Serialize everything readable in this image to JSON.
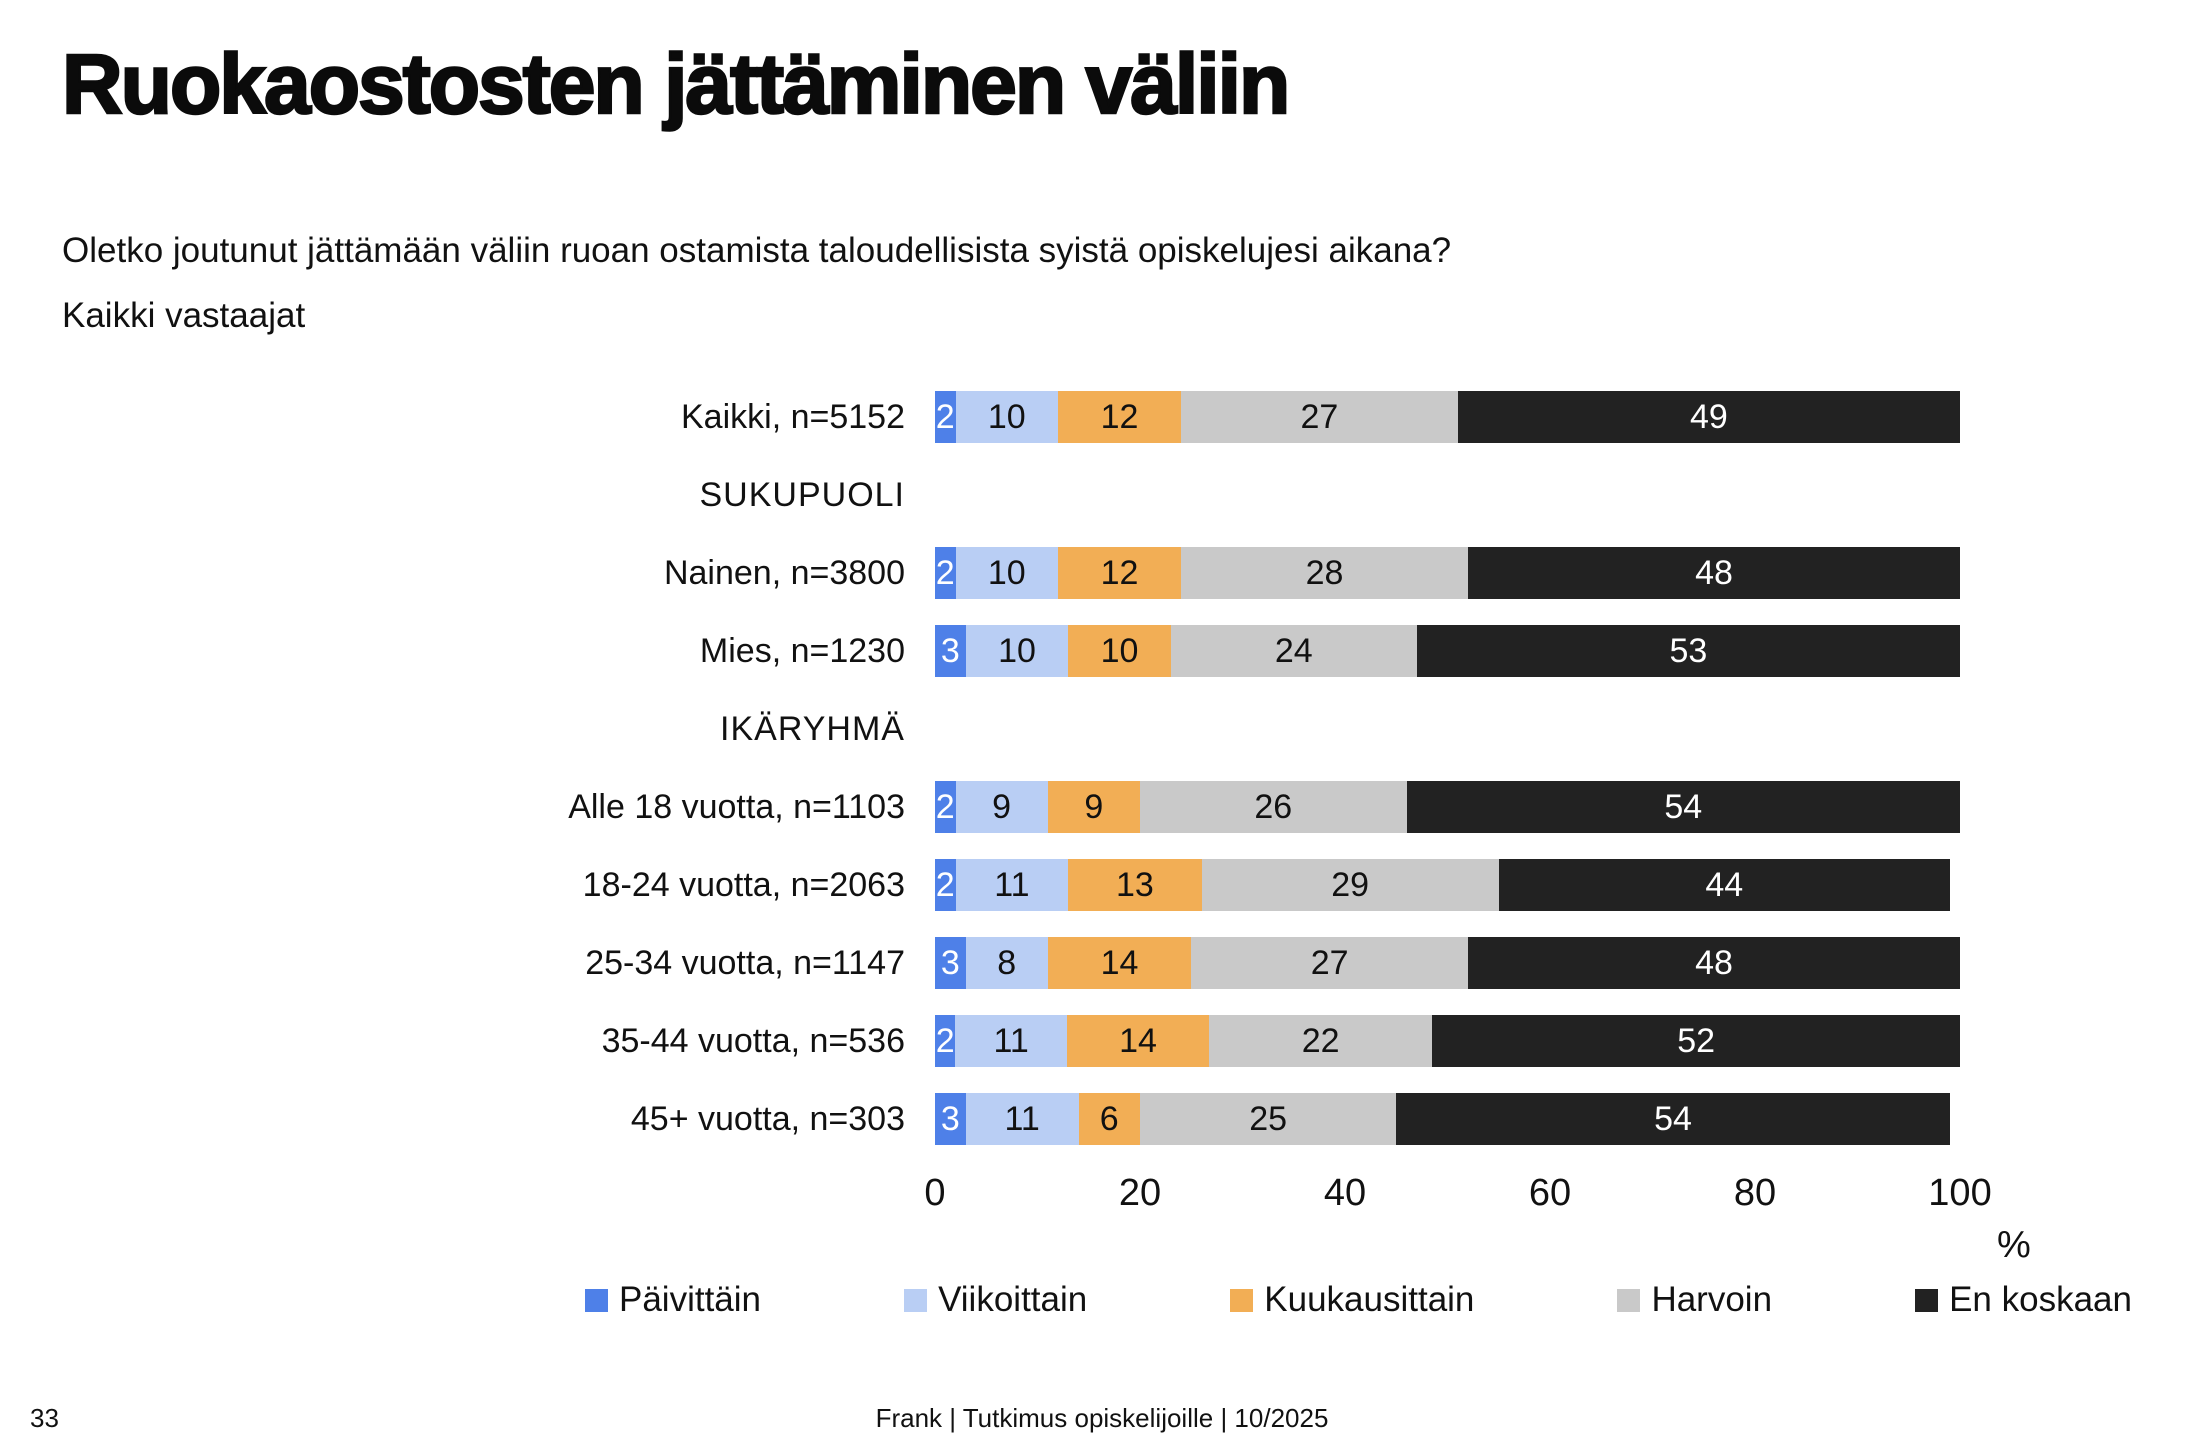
{
  "page": {
    "title": "Ruokaostosten jättäminen väliin",
    "subtitle_line1": "Oletko joutunut jättämään väliin ruoan ostamista taloudellisista syistä opiskelujesi aikana?",
    "subtitle_line2": "Kaikki vastaajat",
    "footer_page_number": "33",
    "footer_text": "Frank | Tutkimus opiskelijoille | 10/2025"
  },
  "chart_data": {
    "type": "bar",
    "orientation": "horizontal-stacked",
    "unit": "%",
    "title": "Ruokaostosten jättäminen väliin",
    "xlabel": "%",
    "x_ticks": [
      0,
      20,
      40,
      60,
      80,
      100
    ],
    "xlim": [
      0,
      100
    ],
    "grid": false,
    "legend_position": "bottom",
    "series_names": [
      "Päivittäin",
      "Viikoittain",
      "Kuukausittain",
      "Harvoin",
      "En koskaan"
    ],
    "series_colors": [
      "#4e80e8",
      "#b9cef4",
      "#f2ae55",
      "#c9c9c9",
      "#222222"
    ],
    "series_value_text_colors": [
      "#ffffff",
      "#111111",
      "#111111",
      "#111111",
      "#ffffff"
    ],
    "rows": [
      {
        "kind": "bar",
        "label": "Kaikki, n=5152",
        "values": [
          2,
          10,
          12,
          27,
          49
        ]
      },
      {
        "kind": "group",
        "label": "SUKUPUOLI"
      },
      {
        "kind": "bar",
        "label": "Nainen, n=3800",
        "values": [
          2,
          10,
          12,
          28,
          48
        ]
      },
      {
        "kind": "bar",
        "label": "Mies, n=1230",
        "values": [
          3,
          10,
          10,
          24,
          53
        ]
      },
      {
        "kind": "group",
        "label": "IKÄRYHMÄ"
      },
      {
        "kind": "bar",
        "label": "Alle 18 vuotta, n=1103",
        "values": [
          2,
          9,
          9,
          26,
          54
        ]
      },
      {
        "kind": "bar",
        "label": "18-24 vuotta, n=2063",
        "values": [
          2,
          11,
          13,
          29,
          44
        ]
      },
      {
        "kind": "bar",
        "label": "25-34 vuotta, n=1147",
        "values": [
          3,
          8,
          14,
          27,
          48
        ]
      },
      {
        "kind": "bar",
        "label": "35-44 vuotta, n=536",
        "values": [
          2,
          11,
          14,
          22,
          52
        ]
      },
      {
        "kind": "bar",
        "label": "45+ vuotta, n=303",
        "values": [
          3,
          11,
          6,
          25,
          54
        ]
      }
    ]
  }
}
